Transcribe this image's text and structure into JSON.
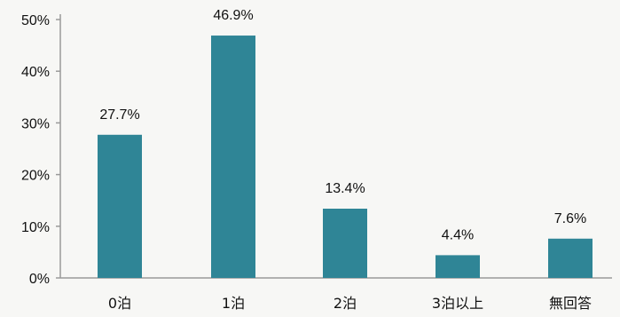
{
  "chart_data": {
    "type": "bar",
    "title": "",
    "xlabel": "",
    "ylabel": "",
    "categories": [
      "0泊",
      "1泊",
      "2泊",
      "3泊以上",
      "無回答"
    ],
    "values": [
      27.7,
      46.9,
      13.4,
      4.4,
      7.6
    ],
    "data_labels": [
      "27.7%",
      "46.9%",
      "13.4%",
      "4.4%",
      "7.6%"
    ],
    "y_ticks": [
      0,
      10,
      20,
      30,
      40,
      50
    ],
    "y_tick_labels": [
      "0%",
      "10%",
      "20%",
      "30%",
      "40%",
      "50%"
    ],
    "ylim": [
      0,
      50
    ],
    "grid": false,
    "legend": "none",
    "bar_color": "#2f8596",
    "axis_color": "#9a9a9a"
  }
}
